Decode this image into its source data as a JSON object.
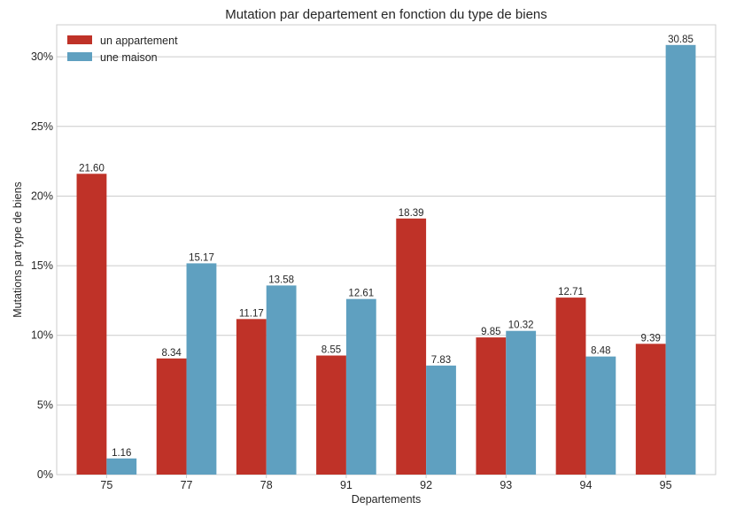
{
  "chart_data": {
    "type": "bar",
    "title": "Mutation par departement en fonction du type de biens",
    "xlabel": "Departements",
    "ylabel": "Mutations par type de biens",
    "categories": [
      "75",
      "77",
      "78",
      "91",
      "92",
      "93",
      "94",
      "95"
    ],
    "series": [
      {
        "name": "un appartement",
        "color": "#bf3228",
        "values": [
          21.6,
          8.34,
          11.17,
          8.55,
          18.39,
          9.85,
          12.71,
          9.39
        ],
        "labels": [
          "21.60",
          "8.34",
          "11.17",
          "8.55",
          "18.39",
          "9.85",
          "12.71",
          "9.39"
        ]
      },
      {
        "name": "une maison",
        "color": "#5fa0c0",
        "values": [
          1.16,
          15.17,
          13.58,
          12.61,
          7.83,
          10.32,
          8.48,
          30.85
        ],
        "labels": [
          "1.16",
          "15.17",
          "13.58",
          "12.61",
          "7.83",
          "10.32",
          "8.48",
          "30.85"
        ]
      }
    ],
    "ylim": [
      0,
      32.3
    ],
    "yticks": [
      0,
      5,
      10,
      15,
      20,
      25,
      30
    ],
    "ytick_labels": [
      "0%",
      "5%",
      "10%",
      "15%",
      "20%",
      "25%",
      "30%"
    ],
    "grid": true,
    "legend_position": "top-left"
  }
}
